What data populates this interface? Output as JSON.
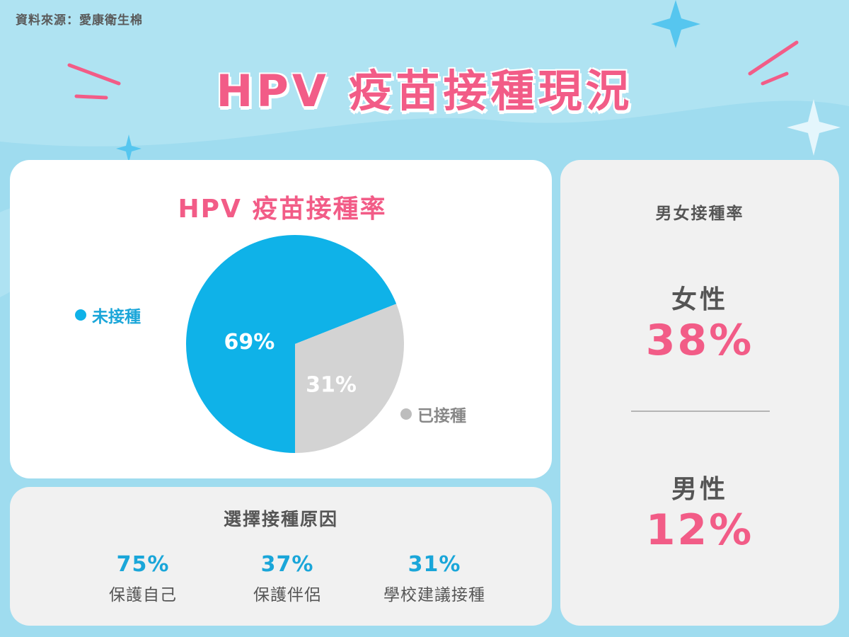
{
  "source": "資料來源：愛康衛生棉",
  "title": "HPV 疫苗接種現況",
  "colors": {
    "accent_pink": "#f25c87",
    "accent_blue": "#0fb2e8",
    "gray_slice": "#d3d3d3",
    "background": "#9fdcef"
  },
  "chart_data": {
    "type": "pie",
    "title": "HPV 疫苗接種率",
    "categories": [
      "未接種",
      "已接種"
    ],
    "values": [
      69,
      31
    ],
    "labels": [
      "69%",
      "31%"
    ],
    "colors": [
      "#0fb2e8",
      "#d3d3d3"
    ],
    "legend": [
      {
        "label": "未接種",
        "color": "#0fb2e8"
      },
      {
        "label": "已接種",
        "color": "#bdbdbd"
      }
    ]
  },
  "reasons": {
    "title": "選擇接種原因",
    "items": [
      {
        "value": "75%",
        "label": "保護自己"
      },
      {
        "value": "37%",
        "label": "保護伴侶"
      },
      {
        "value": "31%",
        "label": "學校建議接種"
      }
    ]
  },
  "gender": {
    "title": "男女接種率",
    "female": {
      "label": "女性",
      "value": "38%"
    },
    "male": {
      "label": "男性",
      "value": "12%"
    }
  }
}
